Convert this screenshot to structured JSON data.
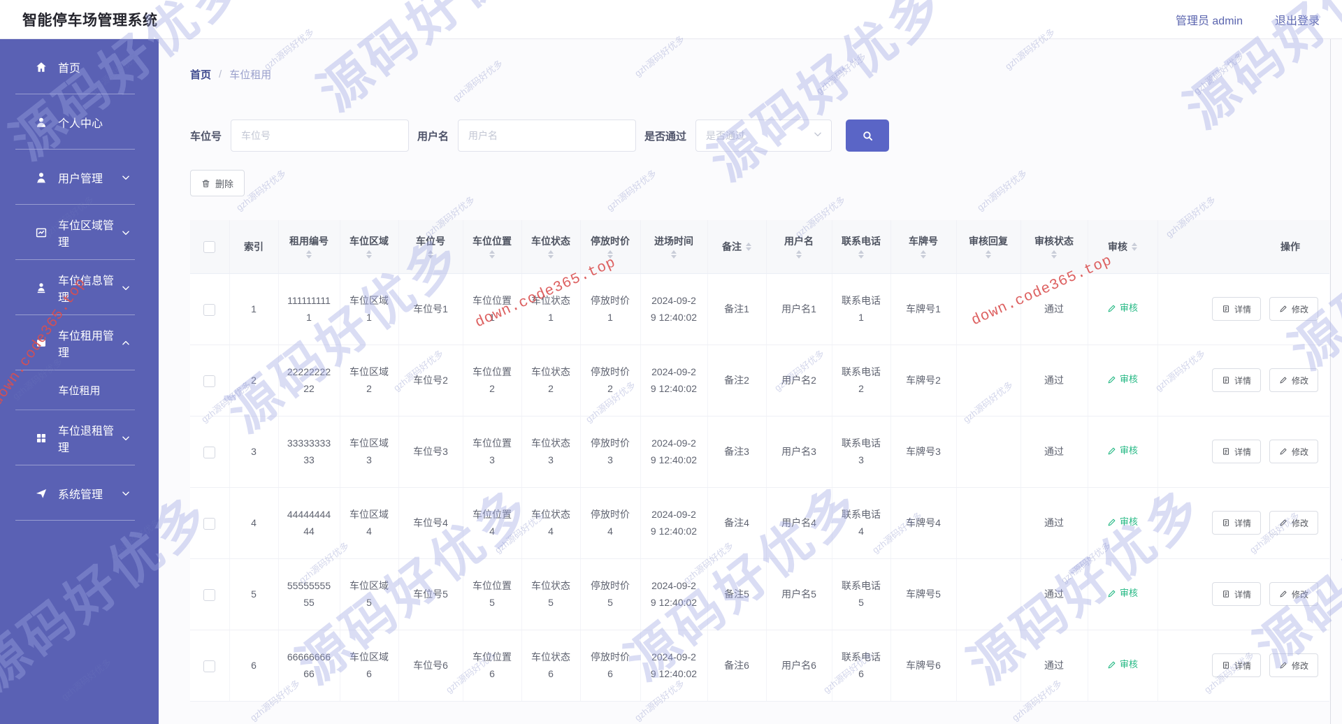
{
  "app": {
    "title": "智能停车场管理系统"
  },
  "topbar": {
    "admin_label": "管理员 admin",
    "logout_label": "退出登录"
  },
  "sidebar": {
    "items": [
      {
        "key": "home",
        "label": "首页",
        "icon": "home-icon",
        "chevron": false
      },
      {
        "key": "profile",
        "label": "个人中心",
        "icon": "user-icon",
        "chevron": false
      },
      {
        "key": "user-mgmt",
        "label": "用户管理",
        "icon": "users-icon",
        "chevron": true
      },
      {
        "key": "area-mgmt",
        "label": "车位区域管理",
        "icon": "chart-icon",
        "chevron": true
      },
      {
        "key": "spot-info-mgmt",
        "label": "车位信息管理",
        "icon": "user-badge-icon",
        "chevron": true
      },
      {
        "key": "spot-rent-mgmt",
        "label": "车位租用管理",
        "icon": "card-icon",
        "chevron": true,
        "expanded": true,
        "children": [
          {
            "key": "spot-rent",
            "label": "车位租用",
            "active": true
          }
        ]
      },
      {
        "key": "spot-retire-mgmt",
        "label": "车位退租管理",
        "icon": "grid-icon",
        "chevron": true
      },
      {
        "key": "system-mgmt",
        "label": "系统管理",
        "icon": "send-icon",
        "chevron": true
      }
    ]
  },
  "breadcrumb": {
    "home": "首页",
    "separator": "/",
    "current": "车位租用"
  },
  "filters": {
    "fields": [
      {
        "label": "车位号",
        "placeholder": "车位号",
        "type": "input"
      },
      {
        "label": "用户名",
        "placeholder": "用户名",
        "type": "input"
      },
      {
        "label": "是否通过",
        "placeholder": "是否通过",
        "type": "select"
      }
    ],
    "delete_button_label": "删除"
  },
  "table": {
    "columns": [
      {
        "key": "index",
        "label": "索引",
        "sort": "none"
      },
      {
        "key": "rent_no",
        "label": "租用编号",
        "sort": "below"
      },
      {
        "key": "area",
        "label": "车位区域",
        "sort": "below"
      },
      {
        "key": "spot_no",
        "label": "车位号",
        "sort": "below"
      },
      {
        "key": "position",
        "label": "车位位置",
        "sort": "below"
      },
      {
        "key": "status",
        "label": "车位状态",
        "sort": "below"
      },
      {
        "key": "price",
        "label": "停放时价",
        "sort": "below"
      },
      {
        "key": "enter_time",
        "label": "进场时间",
        "sort": "below"
      },
      {
        "key": "remark",
        "label": "备注",
        "sort": "inline"
      },
      {
        "key": "username",
        "label": "用户名",
        "sort": "below"
      },
      {
        "key": "phone",
        "label": "联系电话",
        "sort": "below"
      },
      {
        "key": "plate",
        "label": "车牌号",
        "sort": "below"
      },
      {
        "key": "audit_reply",
        "label": "审核回复",
        "sort": "below"
      },
      {
        "key": "audit_status",
        "label": "审核状态",
        "sort": "below"
      },
      {
        "key": "audit",
        "label": "审核",
        "sort": "inline",
        "type": "audit-link"
      },
      {
        "key": "ops",
        "label": "操作",
        "sort": "none",
        "type": "actions"
      }
    ],
    "audit_link_label": "审核",
    "actions": {
      "detail": "详情",
      "edit": "修改"
    },
    "rows": [
      {
        "index": "1",
        "rent_no": "1111111111",
        "area": "车位区域1",
        "spot_no": "车位号1",
        "position": "车位位置1",
        "status": "车位状态1",
        "price": "停放时价1",
        "enter_time": "2024-09-29 12:40:02",
        "remark": "备注1",
        "username": "用户名1",
        "phone": "联系电话1",
        "plate": "车牌号1",
        "audit_reply": "",
        "audit_status": "通过"
      },
      {
        "index": "2",
        "rent_no": "2222222222",
        "area": "车位区域2",
        "spot_no": "车位号2",
        "position": "车位位置2",
        "status": "车位状态2",
        "price": "停放时价2",
        "enter_time": "2024-09-29 12:40:02",
        "remark": "备注2",
        "username": "用户名2",
        "phone": "联系电话2",
        "plate": "车牌号2",
        "audit_reply": "",
        "audit_status": "通过"
      },
      {
        "index": "3",
        "rent_no": "3333333333",
        "area": "车位区域3",
        "spot_no": "车位号3",
        "position": "车位位置3",
        "status": "车位状态3",
        "price": "停放时价3",
        "enter_time": "2024-09-29 12:40:02",
        "remark": "备注3",
        "username": "用户名3",
        "phone": "联系电话3",
        "plate": "车牌号3",
        "audit_reply": "",
        "audit_status": "通过"
      },
      {
        "index": "4",
        "rent_no": "4444444444",
        "area": "车位区域4",
        "spot_no": "车位号4",
        "position": "车位位置4",
        "status": "车位状态4",
        "price": "停放时价4",
        "enter_time": "2024-09-29 12:40:02",
        "remark": "备注4",
        "username": "用户名4",
        "phone": "联系电话4",
        "plate": "车牌号4",
        "audit_reply": "",
        "audit_status": "通过"
      },
      {
        "index": "5",
        "rent_no": "5555555555",
        "area": "车位区域5",
        "spot_no": "车位号5",
        "position": "车位位置5",
        "status": "车位状态5",
        "price": "停放时价5",
        "enter_time": "2024-09-29 12:40:02",
        "remark": "备注5",
        "username": "用户名5",
        "phone": "联系电话5",
        "plate": "车牌号5",
        "audit_reply": "",
        "audit_status": "通过"
      },
      {
        "index": "6",
        "rent_no": "6666666666",
        "area": "车位区域6",
        "spot_no": "车位号6",
        "position": "车位位置6",
        "status": "车位状态6",
        "price": "停放时价6",
        "enter_time": "2024-09-29 12:40:02",
        "remark": "备注6",
        "username": "用户名6",
        "phone": "联系电话6",
        "plate": "车牌号6",
        "audit_reply": "",
        "audit_status": "通过"
      }
    ]
  },
  "watermark": {
    "big_text": "源码好优多",
    "small_text": "gzh源码好优多",
    "red_text": "down.code365.top",
    "colors": {
      "accent": "#5a61b4",
      "button": "#5a65c6",
      "success": "#23b883",
      "red": "#d94f4f"
    }
  }
}
